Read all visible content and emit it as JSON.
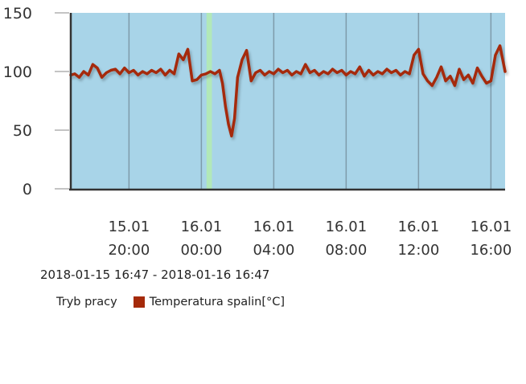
{
  "chart_data": {
    "type": "line",
    "ylim": [
      0,
      150
    ],
    "y_ticks": [
      "0",
      "50",
      "100",
      "150"
    ],
    "x_ticks": [
      {
        "date": "15.01",
        "time": "20:00"
      },
      {
        "date": "16.01",
        "time": "00:00"
      },
      {
        "date": "16.01",
        "time": "04:00"
      },
      {
        "date": "16.01",
        "time": "08:00"
      },
      {
        "date": "16.01",
        "time": "12:00"
      },
      {
        "date": "16.01",
        "time": "16:00"
      }
    ],
    "time_range": "2018-01-15 16:47 - 2018-01-16 16:47",
    "x_start": "2018-01-15 16:47",
    "x_end": "2018-01-16 16:47",
    "legend": [
      {
        "name": "Tryb pracy",
        "color": ""
      },
      {
        "name": "Temperatura spalin[°C]",
        "color": "#a52a0a"
      }
    ],
    "plot_background": "#a8d4e8",
    "mode_band": {
      "from": "2018-01-16 00:17",
      "to": "2018-01-16 00:35",
      "color": "#b2e8b8"
    },
    "series": [
      {
        "name": "Temperatura spalin[°C]",
        "color": "#a52a0a",
        "points": [
          [
            "2018-01-15 16:47",
            97
          ],
          [
            "2018-01-15 17:00",
            98
          ],
          [
            "2018-01-15 17:15",
            95
          ],
          [
            "2018-01-15 17:30",
            100
          ],
          [
            "2018-01-15 17:45",
            97
          ],
          [
            "2018-01-15 18:00",
            106
          ],
          [
            "2018-01-15 18:15",
            103
          ],
          [
            "2018-01-15 18:30",
            95
          ],
          [
            "2018-01-15 18:45",
            99
          ],
          [
            "2018-01-15 19:00",
            101
          ],
          [
            "2018-01-15 19:15",
            102
          ],
          [
            "2018-01-15 19:30",
            98
          ],
          [
            "2018-01-15 19:45",
            103
          ],
          [
            "2018-01-15 20:00",
            99
          ],
          [
            "2018-01-15 20:15",
            101
          ],
          [
            "2018-01-15 20:30",
            97
          ],
          [
            "2018-01-15 20:45",
            100
          ],
          [
            "2018-01-15 21:00",
            98
          ],
          [
            "2018-01-15 21:15",
            101
          ],
          [
            "2018-01-15 21:30",
            99
          ],
          [
            "2018-01-15 21:45",
            102
          ],
          [
            "2018-01-15 22:00",
            97
          ],
          [
            "2018-01-15 22:15",
            101
          ],
          [
            "2018-01-15 22:30",
            98
          ],
          [
            "2018-01-15 22:45",
            115
          ],
          [
            "2018-01-15 23:00",
            110
          ],
          [
            "2018-01-15 23:15",
            119
          ],
          [
            "2018-01-15 23:30",
            92
          ],
          [
            "2018-01-15 23:45",
            93
          ],
          [
            "2018-01-16 00:00",
            97
          ],
          [
            "2018-01-16 00:15",
            98
          ],
          [
            "2018-01-16 00:30",
            100
          ],
          [
            "2018-01-16 00:45",
            98
          ],
          [
            "2018-01-16 01:00",
            101
          ],
          [
            "2018-01-16 01:10",
            90
          ],
          [
            "2018-01-16 01:20",
            70
          ],
          [
            "2018-01-16 01:30",
            55
          ],
          [
            "2018-01-16 01:40",
            45
          ],
          [
            "2018-01-16 01:50",
            60
          ],
          [
            "2018-01-16 02:00",
            95
          ],
          [
            "2018-01-16 02:15",
            110
          ],
          [
            "2018-01-16 02:30",
            118
          ],
          [
            "2018-01-16 02:45",
            92
          ],
          [
            "2018-01-16 03:00",
            99
          ],
          [
            "2018-01-16 03:15",
            101
          ],
          [
            "2018-01-16 03:30",
            97
          ],
          [
            "2018-01-16 03:45",
            100
          ],
          [
            "2018-01-16 04:00",
            98
          ],
          [
            "2018-01-16 04:15",
            102
          ],
          [
            "2018-01-16 04:30",
            99
          ],
          [
            "2018-01-16 04:45",
            101
          ],
          [
            "2018-01-16 05:00",
            97
          ],
          [
            "2018-01-16 05:15",
            100
          ],
          [
            "2018-01-16 05:30",
            98
          ],
          [
            "2018-01-16 05:45",
            106
          ],
          [
            "2018-01-16 06:00",
            99
          ],
          [
            "2018-01-16 06:15",
            101
          ],
          [
            "2018-01-16 06:30",
            97
          ],
          [
            "2018-01-16 06:45",
            100
          ],
          [
            "2018-01-16 07:00",
            98
          ],
          [
            "2018-01-16 07:15",
            102
          ],
          [
            "2018-01-16 07:30",
            99
          ],
          [
            "2018-01-16 07:45",
            101
          ],
          [
            "2018-01-16 08:00",
            97
          ],
          [
            "2018-01-16 08:15",
            100
          ],
          [
            "2018-01-16 08:30",
            98
          ],
          [
            "2018-01-16 08:45",
            104
          ],
          [
            "2018-01-16 09:00",
            96
          ],
          [
            "2018-01-16 09:15",
            101
          ],
          [
            "2018-01-16 09:30",
            97
          ],
          [
            "2018-01-16 09:45",
            100
          ],
          [
            "2018-01-16 10:00",
            98
          ],
          [
            "2018-01-16 10:15",
            102
          ],
          [
            "2018-01-16 10:30",
            99
          ],
          [
            "2018-01-16 10:45",
            101
          ],
          [
            "2018-01-16 11:00",
            97
          ],
          [
            "2018-01-16 11:15",
            100
          ],
          [
            "2018-01-16 11:30",
            98
          ],
          [
            "2018-01-16 11:45",
            114
          ],
          [
            "2018-01-16 12:00",
            119
          ],
          [
            "2018-01-16 12:15",
            98
          ],
          [
            "2018-01-16 12:30",
            92
          ],
          [
            "2018-01-16 12:45",
            88
          ],
          [
            "2018-01-16 13:00",
            95
          ],
          [
            "2018-01-16 13:15",
            104
          ],
          [
            "2018-01-16 13:30",
            92
          ],
          [
            "2018-01-16 13:45",
            96
          ],
          [
            "2018-01-16 14:00",
            88
          ],
          [
            "2018-01-16 14:15",
            102
          ],
          [
            "2018-01-16 14:30",
            93
          ],
          [
            "2018-01-16 14:45",
            97
          ],
          [
            "2018-01-16 15:00",
            90
          ],
          [
            "2018-01-16 15:15",
            103
          ],
          [
            "2018-01-16 15:30",
            96
          ],
          [
            "2018-01-16 15:45",
            90
          ],
          [
            "2018-01-16 16:00",
            92
          ],
          [
            "2018-01-16 16:15",
            114
          ],
          [
            "2018-01-16 16:30",
            122
          ],
          [
            "2018-01-16 16:47",
            100
          ]
        ]
      }
    ]
  }
}
